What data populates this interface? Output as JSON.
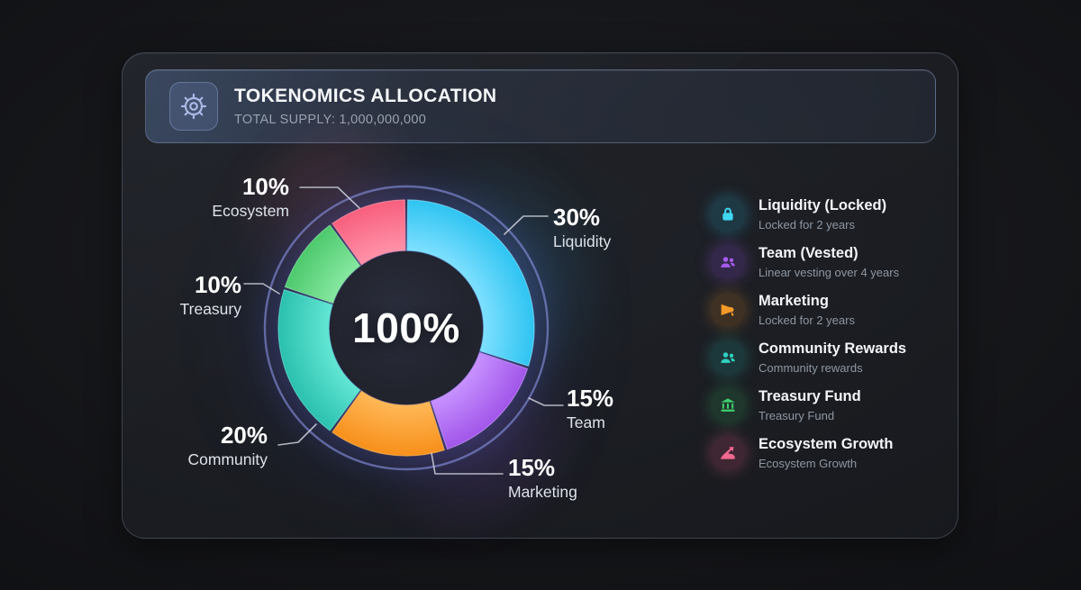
{
  "header": {
    "title": "TOKENOMICS ALLOCATION",
    "subtitle": "TOTAL SUPPLY: 1,000,000,000",
    "icon": "gear-icon"
  },
  "chart_data": {
    "type": "pie",
    "style": "donut",
    "title": "TOKENOMICS ALLOCATION",
    "center_label": "100%",
    "total_supply": "1,000,000,000",
    "start_angle_deg": 0,
    "direction": "clockwise",
    "ring_color": "#8b94e6",
    "segments": [
      {
        "label": "Liquidity",
        "value": 30,
        "pct_label": "30%",
        "color": "#2ec4f1",
        "edge": "#7fe0ff"
      },
      {
        "label": "Team",
        "value": 15,
        "pct_label": "15%",
        "color": "#a155e9",
        "edge": "#c792ff"
      },
      {
        "label": "Marketing",
        "value": 15,
        "pct_label": "15%",
        "color": "#f78f1a",
        "edge": "#ffb857"
      },
      {
        "label": "Community",
        "value": 20,
        "pct_label": "20%",
        "color": "#2bc0ae",
        "edge": "#63e6d4"
      },
      {
        "label": "Treasury",
        "value": 10,
        "pct_label": "10%",
        "color": "#4dc96d",
        "edge": "#86e8a0"
      },
      {
        "label": "Ecosystem",
        "value": 10,
        "pct_label": "10%",
        "color": "#f75f7e",
        "edge": "#ff93a9"
      }
    ]
  },
  "legend": {
    "items": [
      {
        "icon": "lock-icon",
        "title": "Liquidity (Locked)",
        "subtitle": "Locked for 2 years",
        "color": "#3fd6f2",
        "bg": "rgba(47,178,210,0.18)",
        "glow": "rgba(47,198,242,0.28)"
      },
      {
        "icon": "users-icon",
        "title": "Team (Vested)",
        "subtitle": "Linear vesting over 4 years",
        "color": "#a55bef",
        "bg": "rgba(142,82,220,0.20)",
        "glow": "rgba(165,91,239,0.28)"
      },
      {
        "icon": "megaphone-icon",
        "title": "Marketing",
        "subtitle": "Locked for 2 years",
        "color": "#f59a28",
        "bg": "rgba(220,140,40,0.18)",
        "glow": "rgba(245,154,40,0.25)"
      },
      {
        "icon": "users-icon",
        "title": "Community Rewards",
        "subtitle": "Community rewards",
        "color": "#2fd0bf",
        "bg": "rgba(38,180,165,0.18)",
        "glow": "rgba(47,208,191,0.25)"
      },
      {
        "icon": "bank-icon",
        "title": "Treasury Fund",
        "subtitle": "Treasury Fund",
        "color": "#41cf6f",
        "bg": "rgba(48,180,95,0.18)",
        "glow": "rgba(65,207,111,0.25)"
      },
      {
        "icon": "trend-up-icon",
        "title": "Ecosystem Growth",
        "subtitle": "Ecosystem Growth",
        "color": "#f2688f",
        "bg": "rgba(215,80,125,0.20)",
        "glow": "rgba(242,104,143,0.28)"
      }
    ]
  }
}
